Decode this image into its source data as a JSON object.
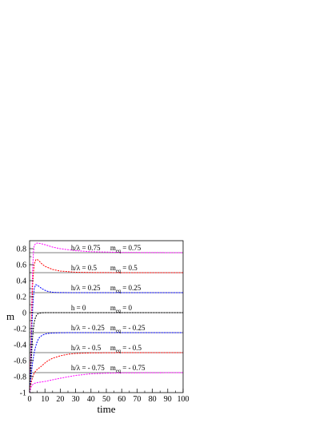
{
  "chart_data": {
    "type": "line",
    "xlabel": "time",
    "ylabel": "m",
    "xlim": [
      0,
      100
    ],
    "ylim": [
      -1,
      0.9
    ],
    "x_ticks": [
      0,
      10,
      20,
      30,
      40,
      50,
      60,
      70,
      80,
      90,
      100
    ],
    "x_tick_labels": [
      "0",
      "10",
      "20",
      "30",
      "40",
      "50",
      "60",
      "70",
      "80",
      "90",
      "100"
    ],
    "y_ticks": [
      -1,
      -0.8,
      -0.6,
      -0.4,
      -0.2,
      0,
      0.2,
      0.4,
      0.6,
      0.8
    ],
    "y_tick_labels": [
      "-1",
      "-0.8",
      "-0.6",
      "-0.4",
      "-0.2",
      "0",
      "0.2",
      "0.4",
      "0.6",
      "0.8"
    ],
    "grid": false,
    "reference_lines": [
      0.75,
      0.5,
      0.25,
      0,
      -0.25,
      -0.5,
      -0.75
    ],
    "series": [
      {
        "color": "#ff00ff",
        "dashed": true,
        "x": [
          0,
          0.5,
          1,
          1.5,
          2,
          2.5,
          3,
          4,
          5,
          6,
          8,
          10,
          15,
          20,
          30,
          40,
          60,
          80,
          100
        ],
        "y": [
          -1,
          -0.7,
          -0.3,
          0.2,
          0.55,
          0.75,
          0.84,
          0.865,
          0.87,
          0.868,
          0.86,
          0.85,
          0.82,
          0.8,
          0.775,
          0.762,
          0.753,
          0.751,
          0.75
        ]
      },
      {
        "color": "#ff0000",
        "dashed": true,
        "x": [
          0,
          0.5,
          1,
          1.5,
          2,
          2.5,
          3,
          4,
          5,
          6,
          8,
          10,
          15,
          20,
          30,
          40,
          60,
          80,
          100
        ],
        "y": [
          -1,
          -0.75,
          -0.4,
          0.05,
          0.35,
          0.5,
          0.6,
          0.66,
          0.665,
          0.65,
          0.61,
          0.58,
          0.54,
          0.52,
          0.505,
          0.502,
          0.5,
          0.5,
          0.5
        ]
      },
      {
        "color": "#0000ff",
        "dashed": true,
        "x": [
          0,
          0.5,
          1,
          1.5,
          2,
          2.5,
          3,
          4,
          5,
          6,
          8,
          10,
          12,
          15,
          20,
          30,
          50,
          100
        ],
        "y": [
          -1,
          -0.8,
          -0.55,
          -0.2,
          0.05,
          0.2,
          0.3,
          0.35,
          0.345,
          0.33,
          0.3,
          0.28,
          0.265,
          0.255,
          0.251,
          0.25,
          0.25,
          0.25
        ]
      },
      {
        "color": "#000000",
        "dashed": true,
        "x": [
          0,
          0.5,
          1,
          1.5,
          2,
          2.5,
          3,
          4,
          5,
          6,
          8,
          10,
          15,
          30,
          100
        ],
        "y": [
          -1,
          -0.85,
          -0.65,
          -0.45,
          -0.3,
          -0.2,
          -0.12,
          -0.05,
          -0.02,
          -0.008,
          -0.002,
          0,
          0,
          0,
          0
        ]
      },
      {
        "color": "#0000ff",
        "dashed": true,
        "x": [
          0,
          0.5,
          1,
          1.5,
          2,
          3,
          4,
          5,
          6,
          8,
          10,
          12,
          15,
          20,
          30,
          50,
          100
        ],
        "y": [
          -1,
          -0.9,
          -0.8,
          -0.7,
          -0.62,
          -0.5,
          -0.42,
          -0.36,
          -0.32,
          -0.285,
          -0.268,
          -0.26,
          -0.255,
          -0.251,
          -0.25,
          -0.25,
          -0.25
        ]
      },
      {
        "color": "#ff0000",
        "dashed": true,
        "x": [
          0,
          0.5,
          1,
          1.5,
          2,
          3,
          4,
          5,
          6,
          8,
          10,
          12,
          15,
          20,
          25,
          30,
          40,
          60,
          100
        ],
        "y": [
          -1,
          -0.93,
          -0.88,
          -0.84,
          -0.8,
          -0.755,
          -0.73,
          -0.71,
          -0.695,
          -0.665,
          -0.63,
          -0.6,
          -0.57,
          -0.54,
          -0.52,
          -0.51,
          -0.503,
          -0.5,
          -0.5
        ]
      },
      {
        "color": "#ff00ff",
        "dashed": true,
        "x": [
          0,
          1,
          2,
          3,
          5,
          10,
          15,
          20,
          30,
          40,
          50,
          60,
          80,
          100
        ],
        "y": [
          -1,
          -0.93,
          -0.9,
          -0.885,
          -0.875,
          -0.86,
          -0.84,
          -0.82,
          -0.785,
          -0.765,
          -0.757,
          -0.753,
          -0.751,
          -0.75
        ]
      }
    ],
    "annotations": [
      {
        "left": "h/λ = 0.75",
        "right": "m",
        "sub": "eq",
        "value": " = 0.75",
        "x": 27,
        "y": 0.78
      },
      {
        "left": "h/λ = 0.5",
        "right": "m",
        "sub": "eq",
        "value": " = 0.5",
        "x": 27,
        "y": 0.53
      },
      {
        "left": "h/λ = 0.25",
        "right": "m",
        "sub": "eq",
        "value": " = 0.25",
        "x": 27,
        "y": 0.28
      },
      {
        "left": "h = 0",
        "right": "m",
        "sub": "eq",
        "value": " = 0",
        "x": 27,
        "y": 0.03
      },
      {
        "left": "h/λ = - 0.25",
        "right": "m",
        "sub": "eq",
        "value": " = - 0.25",
        "x": 27,
        "y": -0.22
      },
      {
        "left": "h/λ = - 0.5",
        "right": "m",
        "sub": "eq",
        "value": " = - 0.5",
        "x": 27,
        "y": -0.47
      },
      {
        "left": "h/λ = - 0.75",
        "right": "m",
        "sub": "eq",
        "value": " = - 0.75",
        "x": 27,
        "y": -0.72
      }
    ]
  }
}
